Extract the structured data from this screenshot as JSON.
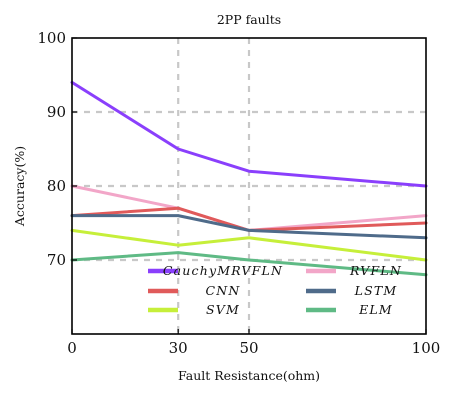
{
  "chart_data": {
    "type": "line",
    "title": "2PP faults",
    "xlabel": "Fault Resistance(ohm)",
    "ylabel": "Accuracy(%)",
    "x": [
      0,
      30,
      50,
      100
    ],
    "x_ticks": [
      "0",
      "30",
      "50",
      "100"
    ],
    "xlim": [
      0,
      100
    ],
    "ylim": [
      60,
      100
    ],
    "y_ticks": [
      "70",
      "80",
      "90",
      "100"
    ],
    "grid": true,
    "legend_position": "lower-center",
    "series": [
      {
        "name": "CauchyMRVFLN",
        "color": "#8a3ffc",
        "values": [
          94,
          85,
          82,
          80
        ]
      },
      {
        "name": "RVFLN",
        "color": "#f2a6c8",
        "values": [
          80,
          77,
          74,
          76
        ]
      },
      {
        "name": "CNN",
        "color": "#e05a5a",
        "values": [
          76,
          77,
          74,
          75
        ]
      },
      {
        "name": "LSTM",
        "color": "#4f6b8a",
        "values": [
          76,
          76,
          74,
          73
        ]
      },
      {
        "name": "SVM",
        "color": "#c6ef3a",
        "values": [
          74,
          72,
          73,
          70
        ]
      },
      {
        "name": "ELM",
        "color": "#5fba85",
        "values": [
          70,
          71,
          70,
          68
        ]
      }
    ]
  }
}
